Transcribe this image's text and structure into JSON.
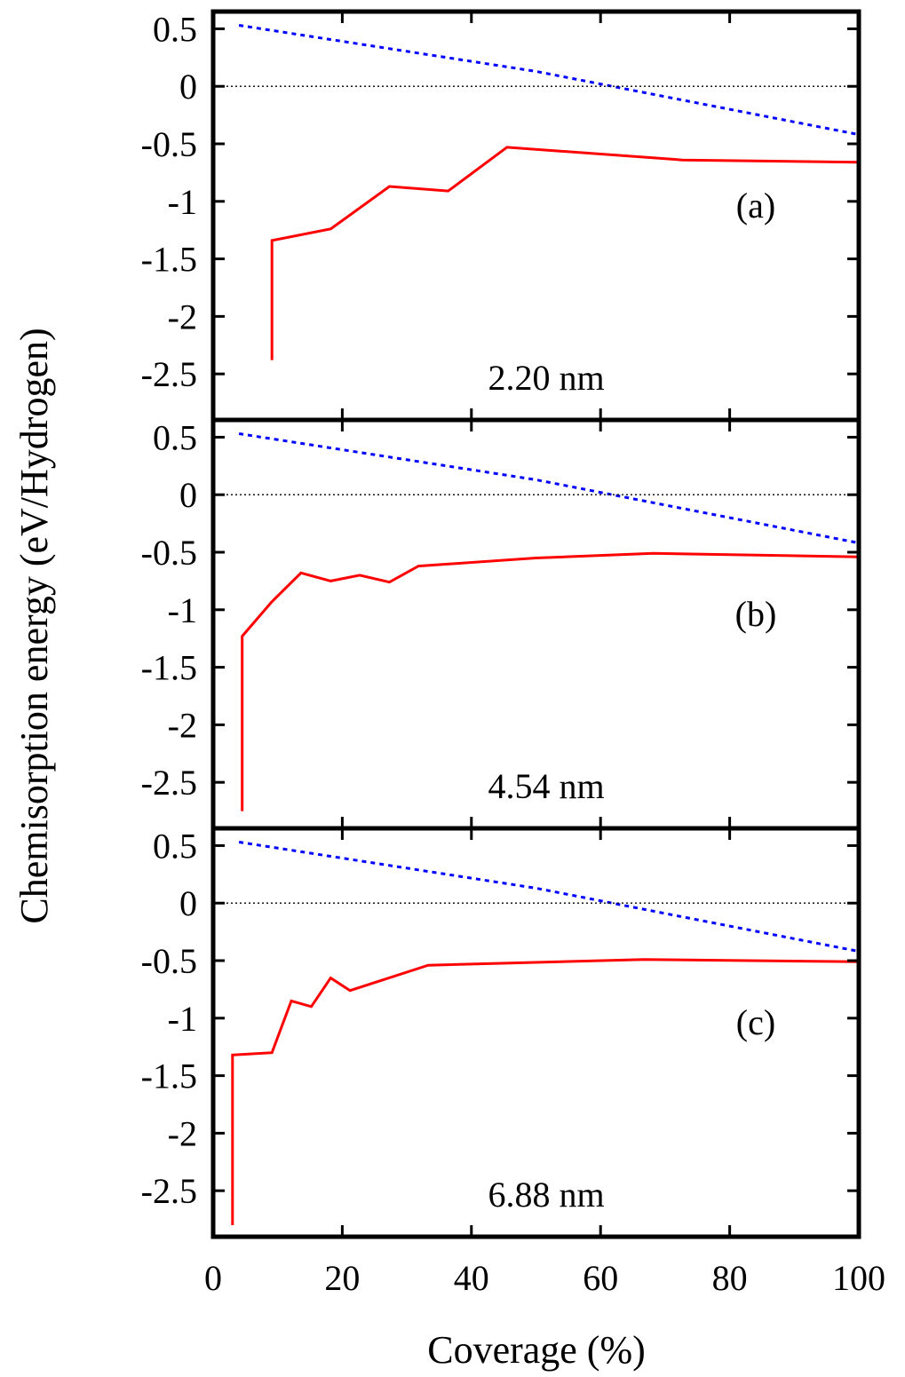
{
  "chart_data": {
    "type": "line",
    "ylabel": "Chemisorption energy (eV/Hydrogen)",
    "xlabel": "Coverage (%)",
    "xlim": [
      0,
      100
    ],
    "ylim": [
      -2.9,
      0.65
    ],
    "x_ticks": [
      "0",
      "20",
      "40",
      "60",
      "80",
      "100"
    ],
    "y_ticks": [
      "0.5",
      "0",
      "-0.5",
      "-1",
      "-1.5",
      "-2",
      "-2.5"
    ],
    "colors": {
      "solid": "#ff0000",
      "dashed": "#0000ff",
      "zero_line": "#000000"
    },
    "panels": [
      {
        "tag": "(a)",
        "size_label": "2.20 nm",
        "series": [
          {
            "style": "solid",
            "x": [
              9.1,
              9.1,
              18.2,
              27.3,
              36.4,
              45.5,
              72.7,
              100
            ],
            "y": [
              -2.38,
              -1.34,
              -1.24,
              -0.87,
              -0.91,
              -0.53,
              -0.64,
              -0.66
            ]
          },
          {
            "style": "dashed",
            "x": [
              4,
              50,
              100
            ],
            "y": [
              0.53,
              0.13,
              -0.42
            ]
          },
          {
            "style": "dotted",
            "x": [
              0,
              100
            ],
            "y": [
              0,
              0
            ]
          }
        ]
      },
      {
        "tag": "(b)",
        "size_label": "4.54 nm",
        "series": [
          {
            "style": "solid",
            "x": [
              4.5,
              4.5,
              9.1,
              13.6,
              18.2,
              22.7,
              27.3,
              31.8,
              50,
              68.2,
              100
            ],
            "y": [
              -2.75,
              -1.23,
              -0.93,
              -0.68,
              -0.75,
              -0.7,
              -0.76,
              -0.62,
              -0.55,
              -0.51,
              -0.54
            ]
          },
          {
            "style": "dashed",
            "x": [
              4,
              50,
              100
            ],
            "y": [
              0.53,
              0.13,
              -0.42
            ]
          },
          {
            "style": "dotted",
            "x": [
              0,
              100
            ],
            "y": [
              0,
              0
            ]
          }
        ]
      },
      {
        "tag": "(c)",
        "size_label": "6.88 nm",
        "series": [
          {
            "style": "solid",
            "x": [
              3.0,
              3.0,
              9.1,
              12.1,
              15.2,
              18.2,
              21.2,
              33.3,
              66.7,
              100
            ],
            "y": [
              -2.8,
              -1.32,
              -1.3,
              -0.85,
              -0.9,
              -0.65,
              -0.76,
              -0.54,
              -0.49,
              -0.51
            ]
          },
          {
            "style": "dashed",
            "x": [
              4,
              50,
              100
            ],
            "y": [
              0.53,
              0.13,
              -0.42
            ]
          },
          {
            "style": "dotted",
            "x": [
              0,
              100
            ],
            "y": [
              0,
              0
            ]
          }
        ]
      }
    ]
  }
}
